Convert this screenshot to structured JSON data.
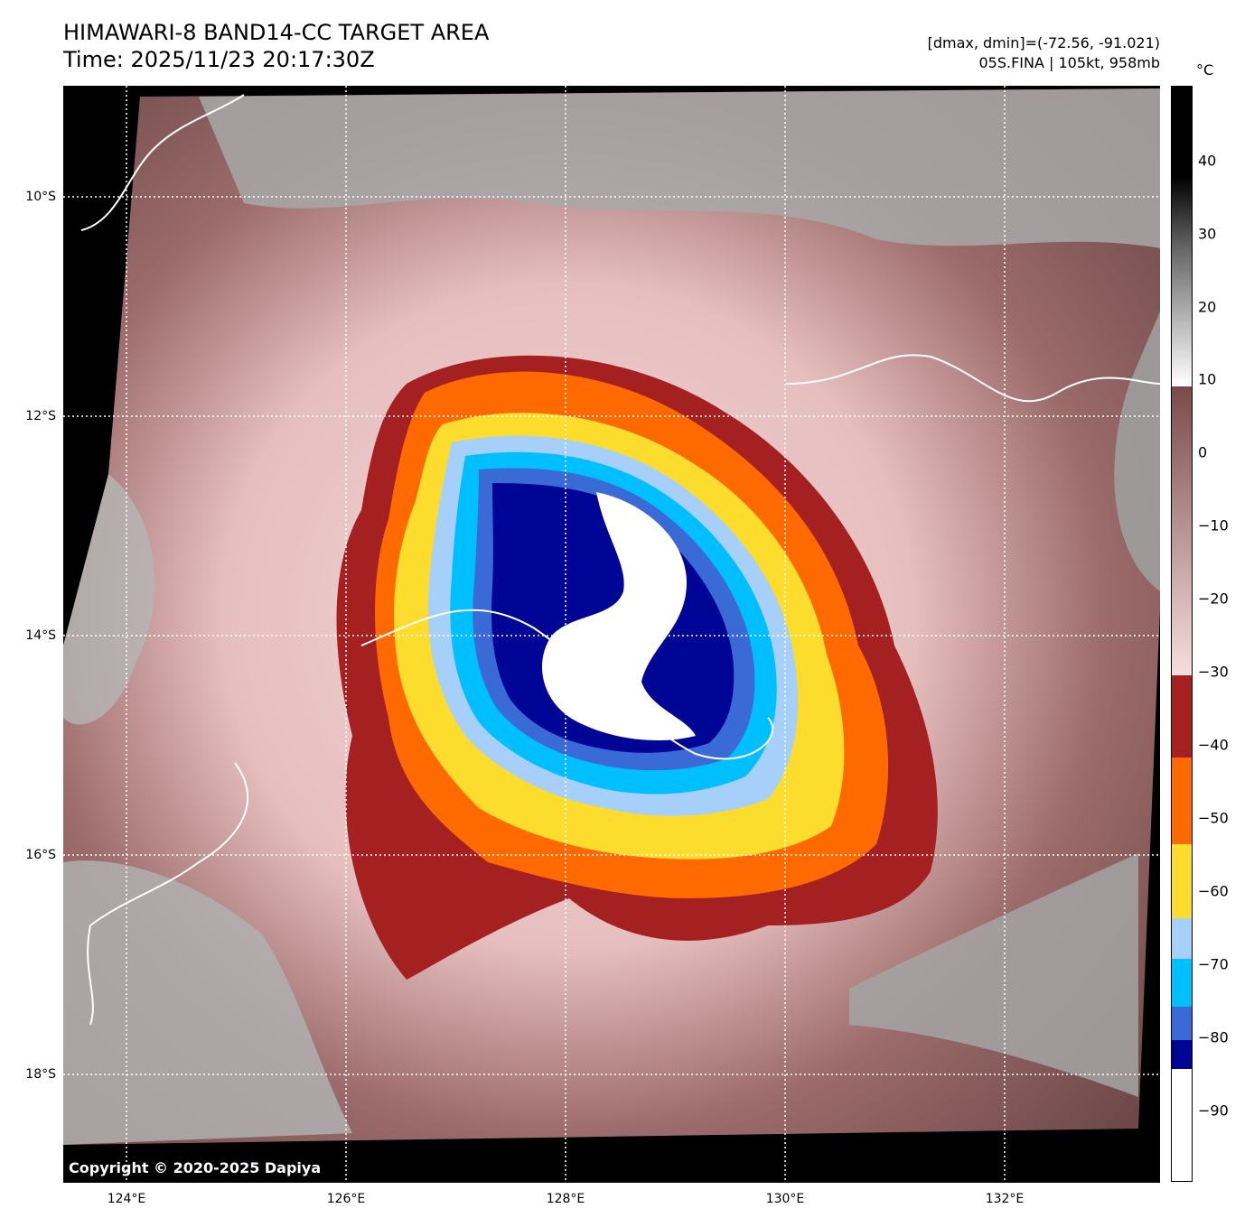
{
  "header": {
    "title_line1": "HIMAWARI-8 BAND14-CC TARGET AREA",
    "title_line2": "Time: 2025/11/23 20:17:30Z",
    "dminmax": "[dmax, dmin]=(-72.56, -91.021)",
    "storm": "05S.FINA | 105kt, 958mb"
  },
  "map": {
    "lat_labels": [
      "10°S",
      "12°S",
      "14°S",
      "16°S",
      "18°S"
    ],
    "lon_labels": [
      "124°E",
      "126°E",
      "128°E",
      "130°E",
      "132°E"
    ],
    "copyright": "Copyright © 2020-2025 Dapiya"
  },
  "colorbar": {
    "unit": "°C",
    "ticks": [
      "40",
      "30",
      "20",
      "10",
      "0",
      "−10",
      "−20",
      "−30",
      "−40",
      "−50",
      "−60",
      "−70",
      "−80",
      "−90"
    ],
    "colors": {
      "warm_dark": "#000000",
      "gray": "#808080",
      "white": "#ffffff",
      "brown": "#7a4a4a",
      "pink": "#f3d6d6",
      "dark_red": "#a52121",
      "orange": "#ff6a00",
      "yellow": "#fcdc2c",
      "light_blue": "#a6cffa",
      "cyan": "#00bfff",
      "royal_blue": "#3a6ad6",
      "navy": "#000596",
      "cold_white": "#ffffff"
    }
  }
}
